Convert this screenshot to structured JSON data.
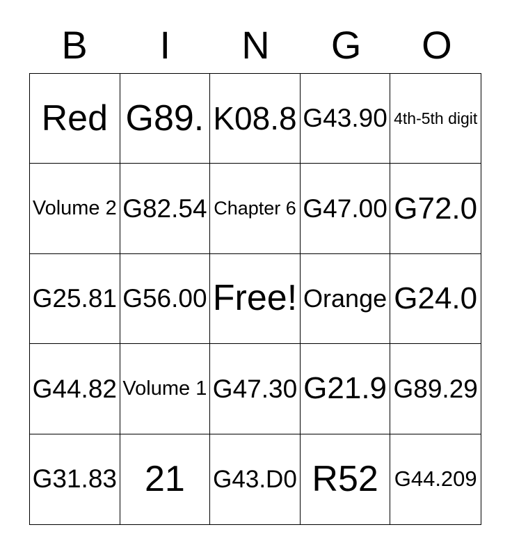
{
  "page": {
    "background_color": "#ffffff",
    "text_color": "#000000",
    "border_color": "#000000"
  },
  "title": {
    "letters": [
      "B",
      "I",
      "N",
      "G",
      "O"
    ]
  },
  "card": {
    "free_space_label": "Free!",
    "rows": [
      [
        "Red",
        "G89.",
        "K08.8",
        "G43.90",
        "4th-5th digit"
      ],
      [
        "Volume 2",
        "G82.54",
        "Chapter 6",
        "G47.00",
        "G72.0"
      ],
      [
        "G25.81",
        "G56.00",
        "Free!",
        "Orange",
        "G24.0"
      ],
      [
        "G44.82",
        "Volume 1",
        "G47.30",
        "G21.9",
        "G89.29"
      ],
      [
        "G31.83",
        "21",
        "G43.D0",
        "R52",
        "G44.209"
      ]
    ]
  }
}
